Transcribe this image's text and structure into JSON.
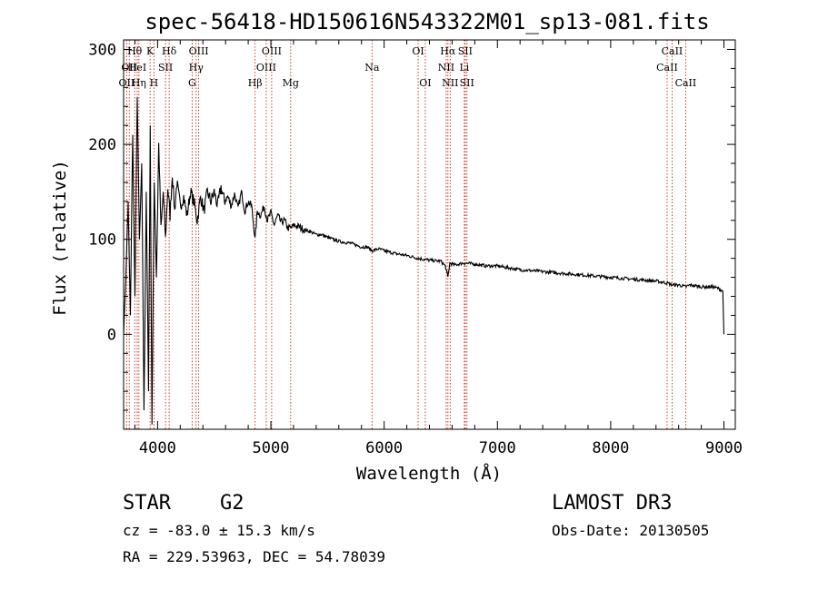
{
  "chart_data": {
    "type": "line",
    "title": "spec-56418-HD150616N543322M01_sp13-081.fits",
    "xlabel": "Wavelength (Å)",
    "ylabel": "Flux (relative)",
    "xlim": [
      3700,
      9100
    ],
    "ylim": [
      -100,
      310
    ],
    "x_ticks": [
      4000,
      5000,
      6000,
      7000,
      8000,
      9000
    ],
    "y_ticks": [
      0,
      100,
      200,
      300
    ],
    "x_tick_labels": [
      "4000",
      "5000",
      "6000",
      "7000",
      "8000",
      "9000"
    ],
    "y_tick_labels": [
      "0",
      "100",
      "200",
      "300"
    ],
    "series": [
      {
        "name": "flux",
        "x": [
          3700,
          3720,
          3740,
          3760,
          3780,
          3800,
          3820,
          3840,
          3860,
          3880,
          3900,
          3920,
          3935,
          3950,
          3970,
          3990,
          4010,
          4030,
          4050,
          4070,
          4090,
          4110,
          4130,
          4150,
          4170,
          4200,
          4230,
          4260,
          4290,
          4320,
          4350,
          4380,
          4410,
          4440,
          4470,
          4500,
          4530,
          4560,
          4590,
          4620,
          4650,
          4680,
          4710,
          4740,
          4770,
          4800,
          4830,
          4861,
          4880,
          4910,
          4940,
          4970,
          5000,
          5030,
          5060,
          5090,
          5120,
          5150,
          5180,
          5210,
          5250,
          5300,
          5350,
          5400,
          5450,
          5500,
          5550,
          5600,
          5650,
          5700,
          5750,
          5800,
          5850,
          5893,
          5950,
          6000,
          6100,
          6200,
          6300,
          6400,
          6500,
          6540,
          6563,
          6580,
          6620,
          6700,
          6800,
          6900,
          7000,
          7200,
          7400,
          7600,
          7800,
          8000,
          8200,
          8400,
          8500,
          8542,
          8600,
          8662,
          8700,
          8800,
          8900,
          8960,
          8990,
          9000
        ],
        "values": [
          0,
          60,
          140,
          20,
          210,
          40,
          250,
          100,
          180,
          -80,
          150,
          -60,
          220,
          -95,
          160,
          60,
          200,
          110,
          150,
          100,
          155,
          125,
          170,
          130,
          160,
          135,
          145,
          125,
          150,
          140,
          120,
          145,
          130,
          150,
          140,
          150,
          135,
          155,
          140,
          145,
          135,
          148,
          132,
          150,
          130,
          140,
          135,
          100,
          130,
          125,
          135,
          120,
          128,
          115,
          125,
          118,
          120,
          112,
          112,
          115,
          113,
          110,
          108,
          105,
          105,
          102,
          100,
          98,
          97,
          96,
          94,
          92,
          92,
          88,
          90,
          88,
          85,
          83,
          80,
          78,
          77,
          72,
          60,
          75,
          73,
          75,
          74,
          72,
          72,
          68,
          66,
          64,
          62,
          60,
          58,
          56,
          54,
          52,
          52,
          50,
          52,
          50,
          50,
          48,
          45,
          0
        ]
      }
    ],
    "spectral_lines": [
      {
        "label": "OII",
        "x": 3727,
        "row": 2
      },
      {
        "label": "Hθ",
        "x": 3798,
        "row": 0
      },
      {
        "label": "OII",
        "x": 3750,
        "row": 1
      },
      {
        "label": "HeI",
        "x": 3820,
        "row": 1
      },
      {
        "label": "Hη",
        "x": 3835,
        "row": 2
      },
      {
        "label": "K",
        "x": 3934,
        "row": 0
      },
      {
        "label": "H",
        "x": 3968,
        "row": 2
      },
      {
        "label": "SII",
        "x": 4070,
        "row": 1
      },
      {
        "label": "Hδ",
        "x": 4102,
        "row": 0
      },
      {
        "label": "OIII",
        "x": 4363,
        "row": 0
      },
      {
        "label": "Hγ",
        "x": 4340,
        "row": 1
      },
      {
        "label": "G",
        "x": 4305,
        "row": 2
      },
      {
        "label": "Hβ",
        "x": 4861,
        "row": 2
      },
      {
        "label": "OIII",
        "x": 5007,
        "row": 0
      },
      {
        "label": "OIII",
        "x": 4959,
        "row": 1
      },
      {
        "label": "Mg",
        "x": 5175,
        "row": 2
      },
      {
        "label": "Na",
        "x": 5893,
        "row": 1
      },
      {
        "label": "OI",
        "x": 6300,
        "row": 0
      },
      {
        "label": "OI",
        "x": 6363,
        "row": 2
      },
      {
        "label": "Hα",
        "x": 6563,
        "row": 0
      },
      {
        "label": "SII",
        "x": 6716,
        "row": 0
      },
      {
        "label": "NII",
        "x": 6548,
        "row": 1
      },
      {
        "label": "Li",
        "x": 6708,
        "row": 1
      },
      {
        "label": "NII",
        "x": 6583,
        "row": 2
      },
      {
        "label": "SII",
        "x": 6731,
        "row": 2
      },
      {
        "label": "CaII",
        "x": 8542,
        "row": 0
      },
      {
        "label": "CaII",
        "x": 8498,
        "row": 1
      },
      {
        "label": "CaII",
        "x": 8662,
        "row": 2
      }
    ]
  },
  "info": {
    "class": "STAR",
    "subclass": "G2",
    "cz": "cz = -83.0 ± 15.3 km/s",
    "coords": "RA = 229.53963, DEC =  54.78039",
    "survey": "LAMOST DR3",
    "obs_date": "Obs-Date: 20130505"
  }
}
